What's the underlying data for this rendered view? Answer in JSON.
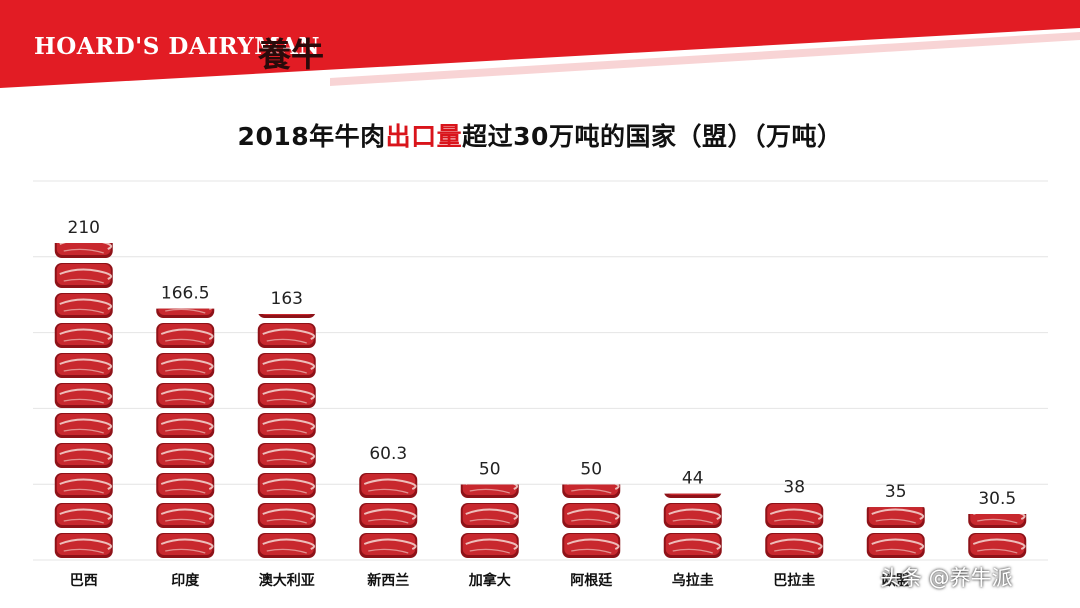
{
  "header": {
    "brand_en": "HOARD'S DAIRYMAN",
    "brand_cn": "養牛",
    "accent_color": "#e21c24"
  },
  "title": {
    "part1": "2018年牛肉",
    "highlight": "出口量",
    "part2": "超过30万吨的国家（盟）（万吨）"
  },
  "watermark": "头条 @养牛派",
  "chart_data": {
    "type": "bar",
    "title": "2018年牛肉出口量超过30万吨的国家（盟）（万吨）",
    "categories": [
      "巴西",
      "印度",
      "澳大利亚",
      "新西兰",
      "加拿大",
      "阿根廷",
      "乌拉圭",
      "巴拉圭",
      "欧盟",
      ""
    ],
    "values": [
      210,
      166.5,
      163,
      60.3,
      50,
      50,
      44,
      38,
      35,
      30.5
    ],
    "value_labels": [
      "210",
      "166.5",
      "163",
      "60.3",
      "50",
      "50",
      "44",
      "38",
      "35",
      "30.5"
    ],
    "ylim": [
      0,
      250
    ],
    "grid": true,
    "bar_style": "stacked-steak-pictograph",
    "colors": {
      "meat": "#c8282e",
      "meat_dark": "#8e1218",
      "fat": "#f4d7d2",
      "grid": "#e4e4e4"
    }
  }
}
